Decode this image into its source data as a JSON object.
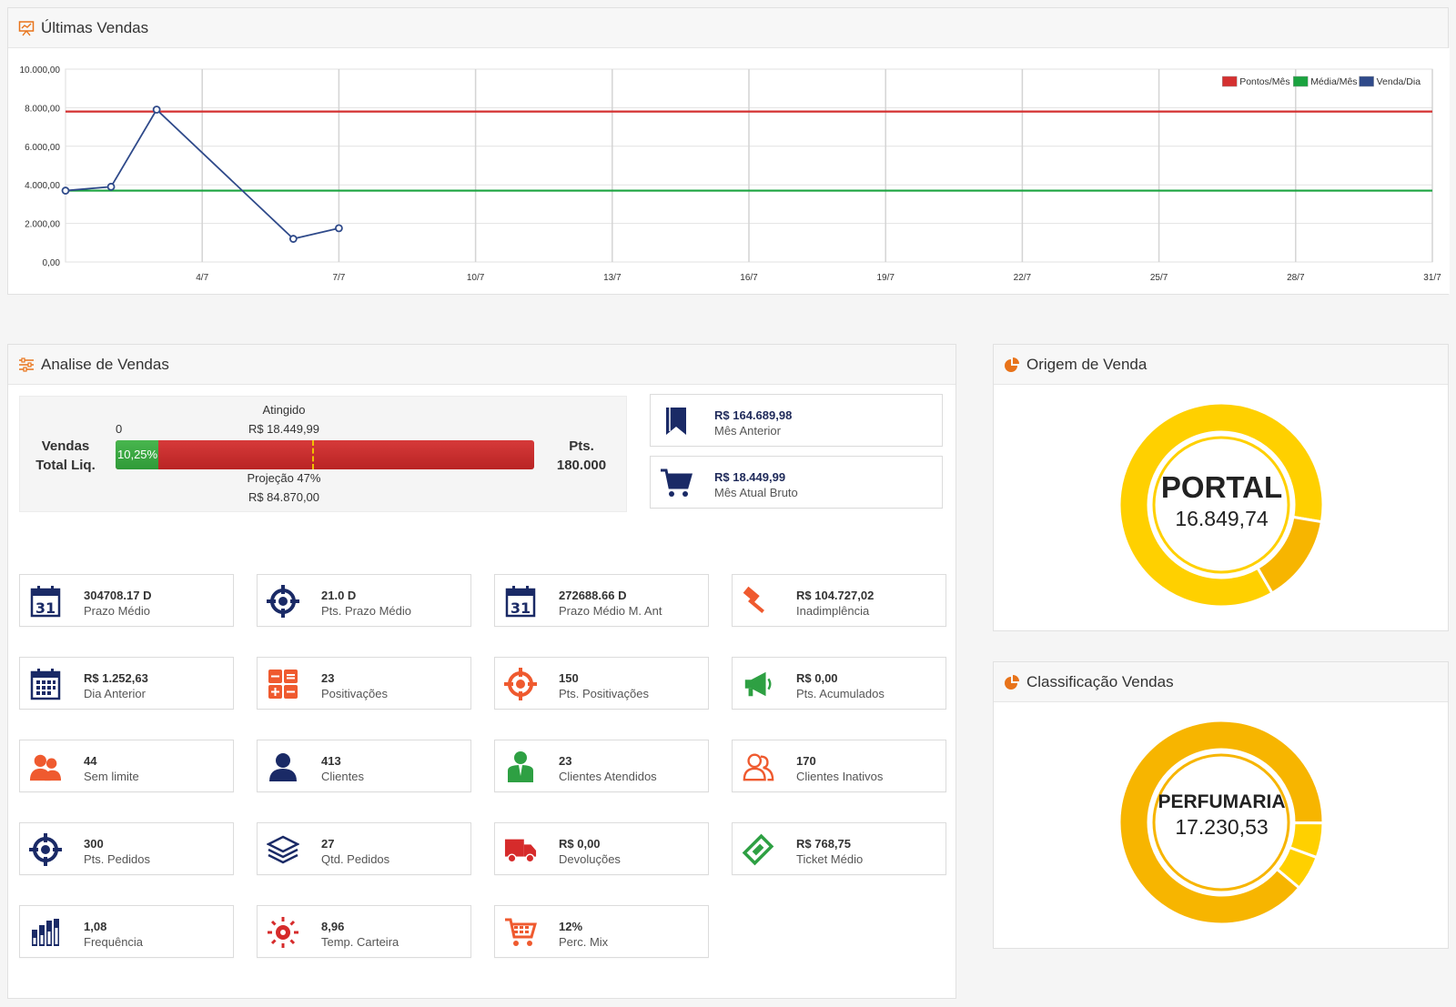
{
  "sales_panel": {
    "title": "Últimas Vendas",
    "icon": "presentation-chart-icon"
  },
  "chart_data": {
    "type": "line",
    "x_ticks": [
      "4/7",
      "7/7",
      "10/7",
      "13/7",
      "16/7",
      "19/7",
      "22/7",
      "25/7",
      "28/7",
      "31/7"
    ],
    "y_ticks": [
      "0,00",
      "2.000,00",
      "4.000,00",
      "6.000,00",
      "8.000,00",
      "10.000,00"
    ],
    "ylim": [
      0,
      10000
    ],
    "xlim": [
      1,
      31
    ],
    "grid": true,
    "legend_position": "top-right",
    "series": [
      {
        "name": "Pontos/Mês",
        "color": "#d43030",
        "x": [
          1,
          31
        ],
        "y": [
          7800,
          7800
        ]
      },
      {
        "name": "Média/Mês",
        "color": "#1aa33f",
        "x": [
          1,
          31
        ],
        "y": [
          3700,
          3700
        ]
      },
      {
        "name": "Venda/Dia",
        "color": "#2f4a8a",
        "x": [
          1,
          2,
          3,
          6,
          7
        ],
        "y": [
          3700,
          3900,
          7900,
          1200,
          1750
        ]
      }
    ]
  },
  "analise": {
    "title": "Analise de Vendas",
    "icon": "sliders-icon",
    "progress": {
      "left_label_1": "Vendas",
      "left_label_2": "Total Liq.",
      "right_label_1": "Pts.",
      "right_label_2": "180.000",
      "zero": "0",
      "atingido_label": "Atingido",
      "atingido_value": "R$ 18.449,99",
      "fill_text": "10,25%",
      "fill_fraction": 0.1025,
      "projection_fraction": 0.47,
      "projecao_label": "Projeção 47%",
      "projecao_value": "R$ 84.870,00",
      "bar_color": "#c62f2f",
      "fill_color": "#3da543",
      "marker_color": "#f0c000"
    },
    "summary": [
      {
        "value": "R$ 164.689,98",
        "label": "Mês Anterior",
        "icon": "bookmark-icon"
      },
      {
        "value": "R$ 18.449,99",
        "label": "Mês Atual Bruto",
        "icon": "shopping-cart-icon"
      }
    ],
    "cards": [
      {
        "value": "304708.17 D",
        "label": "Prazo Médio",
        "icon": "calendar-31-icon"
      },
      {
        "value": "21.0 D",
        "label": "Pts. Prazo Médio",
        "icon": "crosshair-icon"
      },
      {
        "value": "272688.66 D",
        "label": "Prazo Médio M. Ant",
        "icon": "calendar-31-icon"
      },
      {
        "value": "R$ 104.727,02",
        "label": "Inadimplência",
        "icon": "gavel-icon"
      },
      {
        "value": "R$ 1.252,63",
        "label": "Dia Anterior",
        "icon": "calendar-grid-icon"
      },
      {
        "value": "23",
        "label": "Positivações",
        "icon": "calculator-icon"
      },
      {
        "value": "150",
        "label": "Pts. Positivações",
        "icon": "crosshair-icon"
      },
      {
        "value": "R$ 0,00",
        "label": "Pts. Acumulados",
        "icon": "megaphone-icon"
      },
      {
        "value": "44",
        "label": "Sem limite",
        "icon": "users-icon"
      },
      {
        "value": "413",
        "label": "Clientes",
        "icon": "user-icon"
      },
      {
        "value": "23",
        "label": "Clientes Atendidos",
        "icon": "user-tie-icon"
      },
      {
        "value": "170",
        "label": "Clientes Inativos",
        "icon": "users-outline-icon"
      },
      {
        "value": "300",
        "label": "Pts. Pedidos",
        "icon": "crosshair-icon"
      },
      {
        "value": "27",
        "label": "Qtd. Pedidos",
        "icon": "layers-icon"
      },
      {
        "value": "R$ 0,00",
        "label": "Devoluções",
        "icon": "truck-icon"
      },
      {
        "value": "R$ 768,75",
        "label": "Ticket Médio",
        "icon": "ticket-icon"
      },
      {
        "value": "1,08",
        "label": "Frequência",
        "icon": "bar-chart-icon"
      },
      {
        "value": "8,96",
        "label": "Temp. Carteira",
        "icon": "sun-icon"
      },
      {
        "value": "12%",
        "label": "Perc. Mix",
        "icon": "cart-icon"
      }
    ]
  },
  "origem": {
    "title": "Origem de Venda",
    "icon": "pie-chart-icon",
    "center_title": "PORTAL",
    "center_value": "16.849,74",
    "slices": [
      {
        "fraction": 0.86,
        "color": "#ffd000"
      },
      {
        "fraction": 0.14,
        "color": "#f7b500"
      }
    ]
  },
  "classif": {
    "title": "Classificação Vendas",
    "icon": "pie-chart-icon",
    "center_title": "PERFUMARIA",
    "center_value": "17.230,53",
    "slices": [
      {
        "fraction": 0.89,
        "color": "#f7b500"
      },
      {
        "fraction": 0.055,
        "color": "#ffd000"
      },
      {
        "fraction": 0.055,
        "color": "#ffd000"
      }
    ]
  },
  "colors": {
    "navy": "#1a2a66",
    "orange": "#ef5a2f",
    "green": "#2ea043",
    "red": "#d33",
    "header_icon": "#e8731a"
  }
}
